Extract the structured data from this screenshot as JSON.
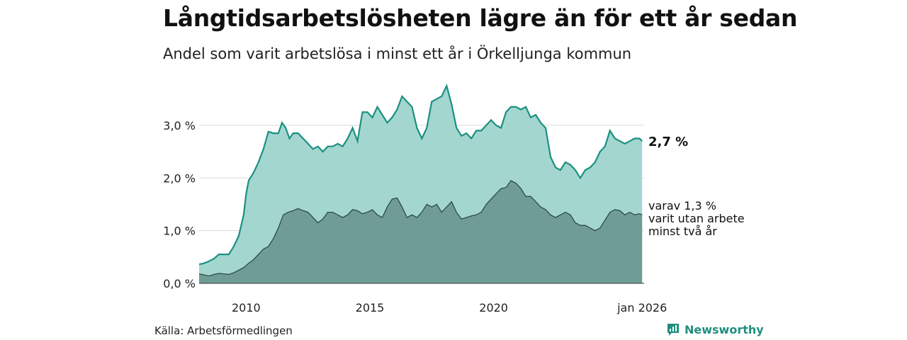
{
  "title": "Långtidsarbetslösheten lägre än för ett år sedan",
  "subtitle": "Andel som varit arbetslösa i minst ett år i Örkelljunga kommun",
  "source": "Källa: Arbetsförmedlingen",
  "brand": "Newsworthy",
  "colors": {
    "top_line": "#1a9080",
    "top_fill": "#a4d6d0",
    "bottom_fill": "#6f9d96",
    "bottom_line": "#2e4a46",
    "grid": "#d9d9d9",
    "brand": "#1f8f7f"
  },
  "chart_data": {
    "type": "area",
    "xlim": [
      2008.1,
      2026.08
    ],
    "ylim": [
      0,
      3.9
    ],
    "x_ticks": [
      {
        "value": 2010,
        "label": "2010"
      },
      {
        "value": 2015,
        "label": "2015"
      },
      {
        "value": 2020,
        "label": "2020"
      },
      {
        "value": 2026.0,
        "label": "jan 2026"
      }
    ],
    "y_ticks": [
      {
        "value": 0,
        "label": "0,0 %"
      },
      {
        "value": 1,
        "label": "1,0 %"
      },
      {
        "value": 2,
        "label": "2,0 %"
      },
      {
        "value": 3,
        "label": "3,0 %"
      }
    ],
    "end_labels": {
      "total": "2,7 %",
      "sub": [
        "varav 1,3 %",
        "varit utan arbete",
        "minst två år"
      ]
    },
    "series": [
      {
        "name": "Arbetslösa minst ett år",
        "points": [
          [
            2008.1,
            0.36
          ],
          [
            2008.3,
            0.38
          ],
          [
            2008.5,
            0.42
          ],
          [
            2008.7,
            0.47
          ],
          [
            2008.9,
            0.55
          ],
          [
            2009.1,
            0.55
          ],
          [
            2009.3,
            0.55
          ],
          [
            2009.5,
            0.7
          ],
          [
            2009.7,
            0.9
          ],
          [
            2009.9,
            1.3
          ],
          [
            2010.0,
            1.7
          ],
          [
            2010.1,
            1.95
          ],
          [
            2010.3,
            2.1
          ],
          [
            2010.5,
            2.3
          ],
          [
            2010.7,
            2.55
          ],
          [
            2010.9,
            2.88
          ],
          [
            2011.1,
            2.85
          ],
          [
            2011.3,
            2.85
          ],
          [
            2011.45,
            3.05
          ],
          [
            2011.6,
            2.95
          ],
          [
            2011.75,
            2.75
          ],
          [
            2011.9,
            2.85
          ],
          [
            2012.1,
            2.85
          ],
          [
            2012.3,
            2.75
          ],
          [
            2012.5,
            2.65
          ],
          [
            2012.7,
            2.55
          ],
          [
            2012.9,
            2.6
          ],
          [
            2013.1,
            2.5
          ],
          [
            2013.3,
            2.6
          ],
          [
            2013.5,
            2.6
          ],
          [
            2013.7,
            2.65
          ],
          [
            2013.9,
            2.6
          ],
          [
            2014.1,
            2.75
          ],
          [
            2014.3,
            2.95
          ],
          [
            2014.5,
            2.7
          ],
          [
            2014.7,
            3.25
          ],
          [
            2014.9,
            3.25
          ],
          [
            2015.1,
            3.15
          ],
          [
            2015.3,
            3.35
          ],
          [
            2015.5,
            3.2
          ],
          [
            2015.7,
            3.05
          ],
          [
            2015.9,
            3.15
          ],
          [
            2016.1,
            3.3
          ],
          [
            2016.3,
            3.55
          ],
          [
            2016.5,
            3.45
          ],
          [
            2016.7,
            3.35
          ],
          [
            2016.9,
            2.95
          ],
          [
            2017.1,
            2.75
          ],
          [
            2017.3,
            2.95
          ],
          [
            2017.5,
            3.45
          ],
          [
            2017.7,
            3.5
          ],
          [
            2017.9,
            3.55
          ],
          [
            2018.1,
            3.75
          ],
          [
            2018.3,
            3.4
          ],
          [
            2018.5,
            2.95
          ],
          [
            2018.7,
            2.8
          ],
          [
            2018.9,
            2.85
          ],
          [
            2019.1,
            2.75
          ],
          [
            2019.3,
            2.9
          ],
          [
            2019.5,
            2.9
          ],
          [
            2019.7,
            3.0
          ],
          [
            2019.9,
            3.1
          ],
          [
            2020.1,
            3.0
          ],
          [
            2020.3,
            2.95
          ],
          [
            2020.5,
            3.25
          ],
          [
            2020.7,
            3.35
          ],
          [
            2020.9,
            3.35
          ],
          [
            2021.1,
            3.3
          ],
          [
            2021.3,
            3.35
          ],
          [
            2021.5,
            3.15
          ],
          [
            2021.7,
            3.2
          ],
          [
            2021.9,
            3.05
          ],
          [
            2022.1,
            2.95
          ],
          [
            2022.3,
            2.4
          ],
          [
            2022.5,
            2.2
          ],
          [
            2022.7,
            2.15
          ],
          [
            2022.9,
            2.3
          ],
          [
            2023.1,
            2.25
          ],
          [
            2023.3,
            2.15
          ],
          [
            2023.5,
            2.0
          ],
          [
            2023.7,
            2.15
          ],
          [
            2023.9,
            2.2
          ],
          [
            2024.1,
            2.3
          ],
          [
            2024.3,
            2.5
          ],
          [
            2024.5,
            2.6
          ],
          [
            2024.7,
            2.9
          ],
          [
            2024.9,
            2.75
          ],
          [
            2025.1,
            2.7
          ],
          [
            2025.3,
            2.65
          ],
          [
            2025.5,
            2.7
          ],
          [
            2025.7,
            2.75
          ],
          [
            2025.9,
            2.75
          ],
          [
            2026.0,
            2.7
          ]
        ]
      },
      {
        "name": "varav utan arbete minst två år",
        "points": [
          [
            2008.1,
            0.18
          ],
          [
            2008.3,
            0.16
          ],
          [
            2008.5,
            0.14
          ],
          [
            2008.7,
            0.17
          ],
          [
            2008.9,
            0.19
          ],
          [
            2009.1,
            0.18
          ],
          [
            2009.3,
            0.17
          ],
          [
            2009.5,
            0.2
          ],
          [
            2009.7,
            0.25
          ],
          [
            2009.9,
            0.3
          ],
          [
            2010.1,
            0.38
          ],
          [
            2010.3,
            0.45
          ],
          [
            2010.5,
            0.55
          ],
          [
            2010.7,
            0.65
          ],
          [
            2010.9,
            0.7
          ],
          [
            2011.1,
            0.85
          ],
          [
            2011.3,
            1.05
          ],
          [
            2011.5,
            1.3
          ],
          [
            2011.7,
            1.35
          ],
          [
            2011.9,
            1.38
          ],
          [
            2012.1,
            1.42
          ],
          [
            2012.3,
            1.38
          ],
          [
            2012.5,
            1.35
          ],
          [
            2012.7,
            1.25
          ],
          [
            2012.9,
            1.15
          ],
          [
            2013.1,
            1.22
          ],
          [
            2013.3,
            1.35
          ],
          [
            2013.5,
            1.35
          ],
          [
            2013.7,
            1.3
          ],
          [
            2013.9,
            1.25
          ],
          [
            2014.1,
            1.3
          ],
          [
            2014.3,
            1.4
          ],
          [
            2014.5,
            1.38
          ],
          [
            2014.7,
            1.32
          ],
          [
            2014.9,
            1.35
          ],
          [
            2015.1,
            1.4
          ],
          [
            2015.3,
            1.3
          ],
          [
            2015.5,
            1.25
          ],
          [
            2015.7,
            1.45
          ],
          [
            2015.9,
            1.6
          ],
          [
            2016.1,
            1.62
          ],
          [
            2016.3,
            1.45
          ],
          [
            2016.5,
            1.25
          ],
          [
            2016.7,
            1.3
          ],
          [
            2016.9,
            1.25
          ],
          [
            2017.1,
            1.35
          ],
          [
            2017.3,
            1.5
          ],
          [
            2017.5,
            1.45
          ],
          [
            2017.7,
            1.5
          ],
          [
            2017.9,
            1.35
          ],
          [
            2018.1,
            1.45
          ],
          [
            2018.3,
            1.55
          ],
          [
            2018.5,
            1.35
          ],
          [
            2018.7,
            1.22
          ],
          [
            2018.9,
            1.25
          ],
          [
            2019.1,
            1.28
          ],
          [
            2019.3,
            1.3
          ],
          [
            2019.5,
            1.35
          ],
          [
            2019.7,
            1.5
          ],
          [
            2019.9,
            1.6
          ],
          [
            2020.1,
            1.7
          ],
          [
            2020.3,
            1.8
          ],
          [
            2020.5,
            1.82
          ],
          [
            2020.7,
            1.95
          ],
          [
            2020.9,
            1.9
          ],
          [
            2021.1,
            1.8
          ],
          [
            2021.3,
            1.65
          ],
          [
            2021.5,
            1.65
          ],
          [
            2021.7,
            1.55
          ],
          [
            2021.9,
            1.45
          ],
          [
            2022.1,
            1.4
          ],
          [
            2022.3,
            1.3
          ],
          [
            2022.5,
            1.25
          ],
          [
            2022.7,
            1.3
          ],
          [
            2022.9,
            1.35
          ],
          [
            2023.1,
            1.3
          ],
          [
            2023.3,
            1.15
          ],
          [
            2023.5,
            1.1
          ],
          [
            2023.7,
            1.1
          ],
          [
            2023.9,
            1.05
          ],
          [
            2024.1,
            1.0
          ],
          [
            2024.3,
            1.05
          ],
          [
            2024.5,
            1.2
          ],
          [
            2024.7,
            1.35
          ],
          [
            2024.9,
            1.4
          ],
          [
            2025.1,
            1.38
          ],
          [
            2025.3,
            1.3
          ],
          [
            2025.5,
            1.35
          ],
          [
            2025.7,
            1.3
          ],
          [
            2025.9,
            1.32
          ],
          [
            2026.0,
            1.3
          ]
        ]
      }
    ]
  }
}
